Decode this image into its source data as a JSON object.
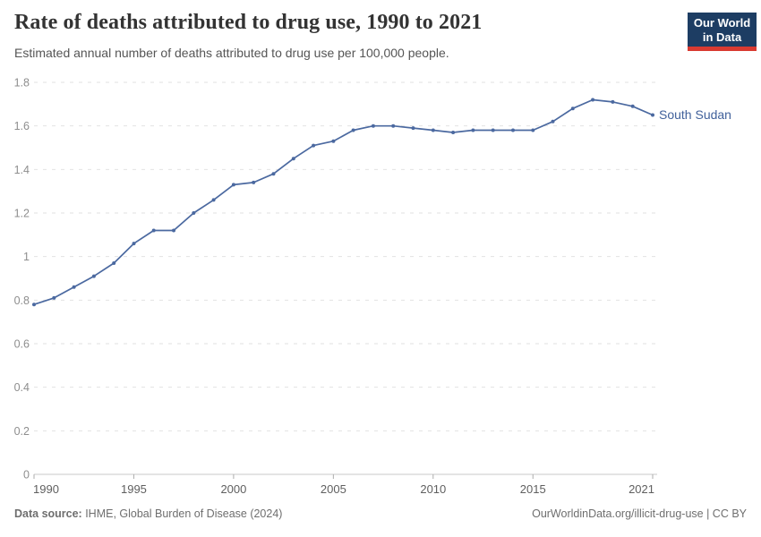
{
  "header": {
    "title": "Rate of deaths attributed to drug use, 1990 to 2021",
    "subtitle": "Estimated annual number of deaths attributed to drug use per 100,000 people.",
    "logo": {
      "line1": "Our World",
      "line2": "in Data"
    }
  },
  "chart_data": {
    "type": "line",
    "title": "Rate of deaths attributed to drug use, 1990 to 2021",
    "xlabel": "",
    "ylabel": "",
    "xlim": [
      1990,
      2021
    ],
    "ylim": [
      0,
      1.8
    ],
    "x_ticks": [
      1990,
      1995,
      2000,
      2005,
      2010,
      2015,
      2021
    ],
    "y_ticks": [
      0,
      0.2,
      0.4,
      0.6,
      0.8,
      1,
      1.2,
      1.4,
      1.6,
      1.8
    ],
    "grid": "horizontal-dashed",
    "legend_position": "end-of-line-label",
    "x": [
      1990,
      1991,
      1992,
      1993,
      1994,
      1995,
      1996,
      1997,
      1998,
      1999,
      2000,
      2001,
      2002,
      2003,
      2004,
      2005,
      2006,
      2007,
      2008,
      2009,
      2010,
      2011,
      2012,
      2013,
      2014,
      2015,
      2016,
      2017,
      2018,
      2019,
      2020,
      2021
    ],
    "series": [
      {
        "name": "South Sudan",
        "values": [
          0.78,
          0.81,
          0.86,
          0.91,
          0.97,
          1.06,
          1.12,
          1.12,
          1.2,
          1.26,
          1.33,
          1.34,
          1.38,
          1.45,
          1.51,
          1.53,
          1.58,
          1.6,
          1.6,
          1.59,
          1.58,
          1.57,
          1.58,
          1.58,
          1.58,
          1.58,
          1.62,
          1.68,
          1.72,
          1.71,
          1.69,
          1.65
        ]
      }
    ]
  },
  "colors": {
    "line": "#4b69a0",
    "series_label": "#41619b",
    "grid": "#e2e2e2",
    "axis_line": "#c9c9c9",
    "axis_tick": "#adadad",
    "y_tick_text": "#8e8e8e",
    "x_tick_text": "#5f5f5f",
    "logo_navy": "#1d3d63",
    "logo_red": "#d93a31"
  },
  "footer": {
    "datasource_label": "Data source:",
    "datasource_value": " IHME, Global Burden of Disease (2024)",
    "credit": "OurWorldinData.org/illicit-drug-use | CC BY"
  }
}
